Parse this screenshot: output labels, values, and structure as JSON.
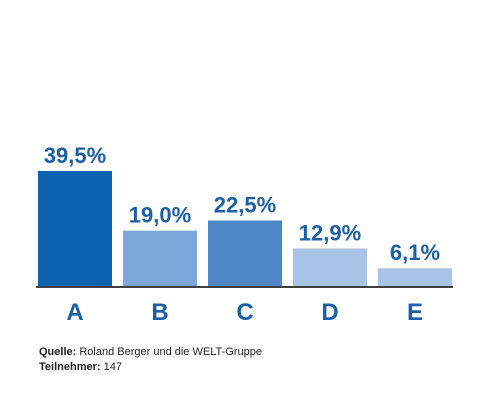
{
  "chart_data": {
    "type": "bar",
    "categories": [
      "A",
      "B",
      "C",
      "D",
      "E"
    ],
    "values": [
      39.5,
      19.0,
      22.5,
      12.9,
      6.1
    ],
    "value_labels": [
      "39,5%",
      "19,0%",
      "22,5%",
      "12,9%",
      "6,1%"
    ],
    "bar_colors": [
      "#0b62b0",
      "#7aa7d8",
      "#4f86c6",
      "#a9c4e6",
      "#a9c4e6"
    ],
    "axis_color": "#000000",
    "label_color": "#1a5fa8",
    "ylim": [
      0,
      39.5
    ],
    "grid": false
  },
  "footer": {
    "source_label": "Quelle:",
    "source_value": " Roland Berger und die WELT-Gruppe",
    "participants_label": "Teilnehmer:",
    "participants_value": " 147"
  }
}
